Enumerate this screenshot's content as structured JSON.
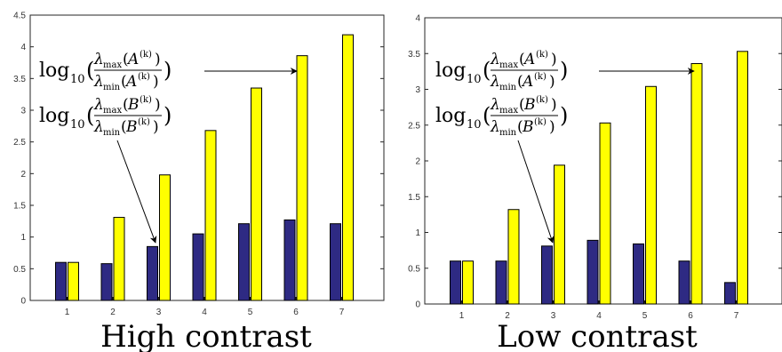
{
  "colors": {
    "series_a": "#2e2a83",
    "series_b": "#ffff00",
    "bar_edge": "#000000",
    "axis": "#262626"
  },
  "annotations": {
    "a": {
      "fn": "log",
      "sub": "10",
      "num_main": "λ",
      "num_sub": "max",
      "num_arg": "A",
      "num_sup": "(k)",
      "den_main": "λ",
      "den_sub": "min",
      "den_arg": "A",
      "den_sup": "(k)"
    },
    "b": {
      "fn": "log",
      "sub": "10",
      "num_main": "λ",
      "num_sub": "max",
      "num_arg": "B",
      "num_sup": "(k)",
      "den_main": "λ",
      "den_sub": "min",
      "den_arg": "B",
      "den_sup": "(k)"
    }
  },
  "chart_data": [
    {
      "type": "bar",
      "title": "High contrast",
      "categories": [
        "1",
        "2",
        "3",
        "4",
        "5",
        "6",
        "7"
      ],
      "series": [
        {
          "values": [
            0.6,
            0.58,
            0.85,
            1.05,
            1.21,
            1.27,
            1.21
          ]
        },
        {
          "values": [
            0.6,
            1.31,
            1.98,
            2.68,
            3.35,
            3.86,
            4.19
          ]
        }
      ],
      "ylim": [
        0,
        4.5
      ],
      "yticks": [
        "0",
        "0.5",
        "1",
        "1.5",
        "2",
        "2.5",
        "3",
        "3.5",
        "4",
        "4.5"
      ]
    },
    {
      "type": "bar",
      "title": "Low contrast",
      "categories": [
        "1",
        "2",
        "3",
        "4",
        "5",
        "6",
        "7"
      ],
      "series": [
        {
          "values": [
            0.6,
            0.6,
            0.81,
            0.89,
            0.84,
            0.6,
            0.3
          ]
        },
        {
          "values": [
            0.6,
            1.32,
            1.94,
            2.53,
            3.04,
            3.36,
            3.53
          ]
        }
      ],
      "ylim": [
        0,
        4
      ],
      "yticks": [
        "0",
        "0.5",
        "1",
        "1.5",
        "2",
        "2.5",
        "3",
        "3.5",
        "4"
      ]
    }
  ]
}
